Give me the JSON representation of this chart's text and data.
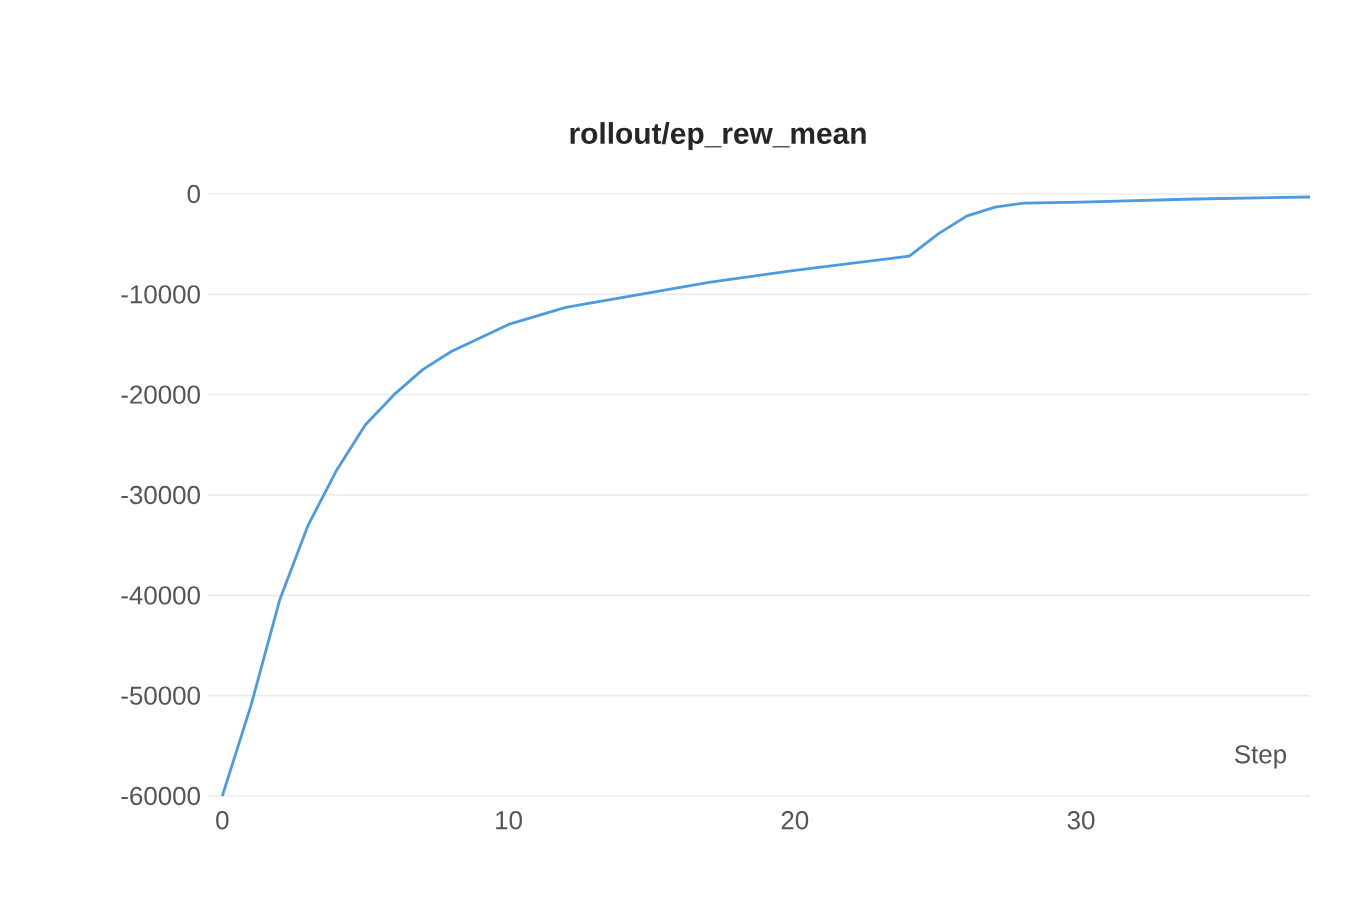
{
  "chart_data": {
    "type": "line",
    "title": "rollout/ep_rew_mean",
    "xlabel": "Step",
    "x": [
      0,
      1,
      2,
      3,
      4,
      5,
      6,
      7,
      8,
      10,
      12,
      15,
      17,
      20,
      24,
      25,
      26,
      27,
      28,
      30,
      34,
      38
    ],
    "series": [
      {
        "color": "#4c9be0",
        "values": [
          -60000,
          -51000,
          -40500,
          -33000,
          -27500,
          -23000,
          -20000,
          -17500,
          -15700,
          -13000,
          -11300,
          -9800,
          -8800,
          -7600,
          -6200,
          -4000,
          -2200,
          -1300,
          -900,
          -800,
          -500,
          -300
        ]
      }
    ],
    "xlim": [
      -0.5,
      38
    ],
    "ylim": [
      -60000,
      0
    ],
    "xticks": [
      0,
      10,
      20,
      30
    ],
    "yticks": [
      -60000,
      -50000,
      -40000,
      -30000,
      -20000,
      -10000,
      0
    ],
    "grid": "y"
  }
}
